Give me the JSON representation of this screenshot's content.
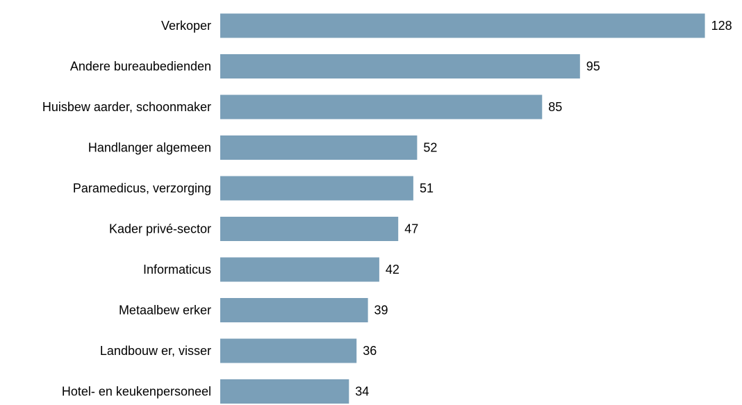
{
  "chart_data": {
    "type": "bar",
    "orientation": "horizontal",
    "categories": [
      "Verkoper",
      "Andere bureaubedienden",
      "Huisbew aarder, schoonmaker",
      "Handlanger algemeen",
      "Paramedicus, verzorging",
      "Kader privé-sector",
      "Informaticus",
      "Metaalbew erker",
      "Landbouw er, visser",
      "Hotel- en keukenpersoneel"
    ],
    "values": [
      128,
      95,
      85,
      52,
      51,
      47,
      42,
      39,
      36,
      34
    ],
    "bar_color": "#7a9fb8",
    "grid": false,
    "legend": "none"
  }
}
